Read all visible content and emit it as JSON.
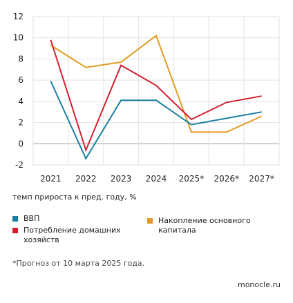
{
  "chart_data": {
    "type": "line",
    "categories": [
      "2021",
      "2022",
      "2023",
      "2024",
      "2025*",
      "2026*",
      "2027*"
    ],
    "series": [
      {
        "name": "ВВП",
        "color": "#1a7fa0",
        "values": [
          5.9,
          -1.4,
          4.1,
          4.1,
          1.8,
          2.4,
          3.0
        ]
      },
      {
        "name": "Потребление домашних хозяйств",
        "color": "#d0202e",
        "values": [
          9.8,
          -0.6,
          7.4,
          5.5,
          2.3,
          3.9,
          4.5
        ]
      },
      {
        "name": "Накопление основного капитала",
        "color": "#e39a21",
        "values": [
          9.3,
          7.2,
          7.7,
          10.2,
          1.1,
          1.1,
          2.6
        ]
      }
    ],
    "ylim": [
      -2,
      12
    ],
    "yticks": [
      -2,
      0,
      2,
      4,
      6,
      8,
      10,
      12
    ],
    "grid": true,
    "ylabel": "темп прироста к пред. году, %",
    "legend_placement": "bottom"
  },
  "caption": "темп прироста к пред. году, %",
  "footnote": "*Прогноз от 10 марта 2025 года.",
  "brand": "monocle.ru"
}
